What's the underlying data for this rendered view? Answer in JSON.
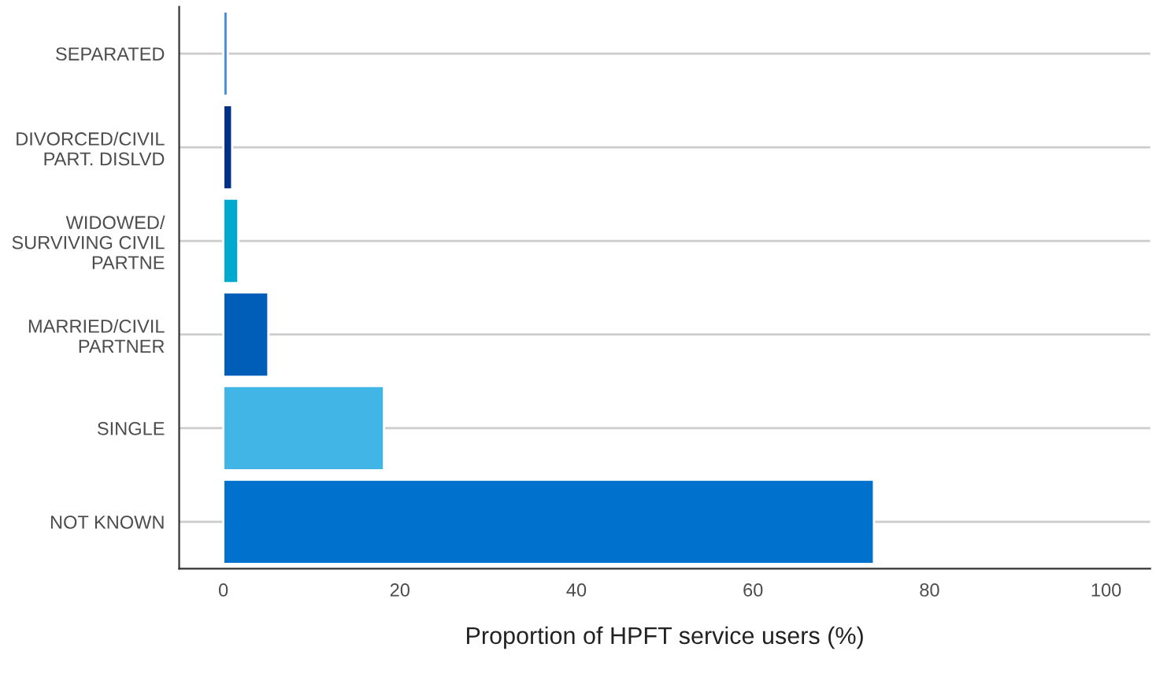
{
  "chart_data": {
    "type": "bar",
    "orientation": "horizontal",
    "xlabel": "Proportion of HPFT service users (%)",
    "categories": [
      "SEPARATED",
      "DIVORCED/CIVIL\nPART. DISLVD",
      "WIDOWED/\nSURVIVING CIVIL\nPARTNE",
      "MARRIED/CIVIL\nPARTNER",
      "SINGLE",
      "NOT KNOWN"
    ],
    "values": [
      0.5,
      1.0,
      1.7,
      5.1,
      18.2,
      73.7
    ],
    "colors": [
      "#3d8fdc",
      "#003087",
      "#00a9ce",
      "#005eb8",
      "#41b6e6",
      "#0072ce"
    ],
    "xlim": [
      -5,
      105
    ],
    "xticks": [
      0,
      20,
      40,
      60,
      80,
      100
    ],
    "grid": "y"
  }
}
